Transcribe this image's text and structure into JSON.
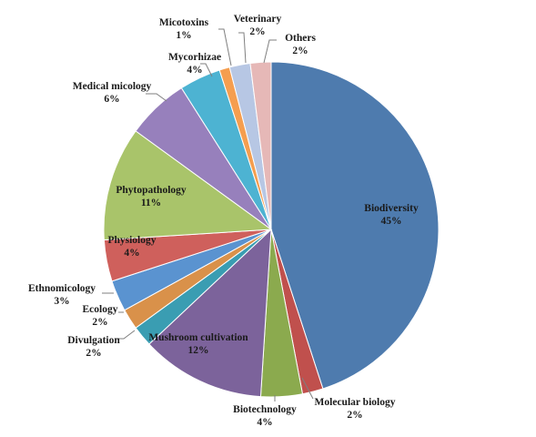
{
  "chart_data": {
    "type": "pie",
    "title": "",
    "slices": [
      {
        "name": "Biodiversity",
        "pct_label": "45%",
        "value": 45,
        "color": "#4E7BAE"
      },
      {
        "name": "Molecular biology",
        "pct_label": "2%",
        "value": 2,
        "color": "#C0504D"
      },
      {
        "name": "Biotechnology",
        "pct_label": "4%",
        "value": 4,
        "color": "#8BAA4E"
      },
      {
        "name": "Mushroom cultivation",
        "pct_label": "12%",
        "value": 12,
        "color": "#7C639B"
      },
      {
        "name": "Divulgation",
        "pct_label": "2%",
        "value": 2,
        "color": "#3A9DB2"
      },
      {
        "name": "Ecology",
        "pct_label": "2%",
        "value": 2,
        "color": "#D9914A"
      },
      {
        "name": "Ethnomicology",
        "pct_label": "3%",
        "value": 3,
        "color": "#5A93D0"
      },
      {
        "name": "Physiology",
        "pct_label": "4%",
        "value": 4,
        "color": "#CF605C"
      },
      {
        "name": "Phytopathology",
        "pct_label": "11%",
        "value": 11,
        "color": "#A9C46A"
      },
      {
        "name": "Medical micology",
        "pct_label": "6%",
        "value": 6,
        "color": "#9780BC"
      },
      {
        "name": "Mycorhizae",
        "pct_label": "4%",
        "value": 4,
        "color": "#4DB3D2"
      },
      {
        "name": "Micotoxins",
        "pct_label": "1%",
        "value": 1,
        "color": "#F59E4F"
      },
      {
        "name": "Veterinary",
        "pct_label": "2%",
        "value": 2,
        "color": "#B7C7E4"
      },
      {
        "name": "Others",
        "pct_label": "2%",
        "value": 2,
        "color": "#E6B8B7"
      }
    ],
    "legend": "none"
  }
}
